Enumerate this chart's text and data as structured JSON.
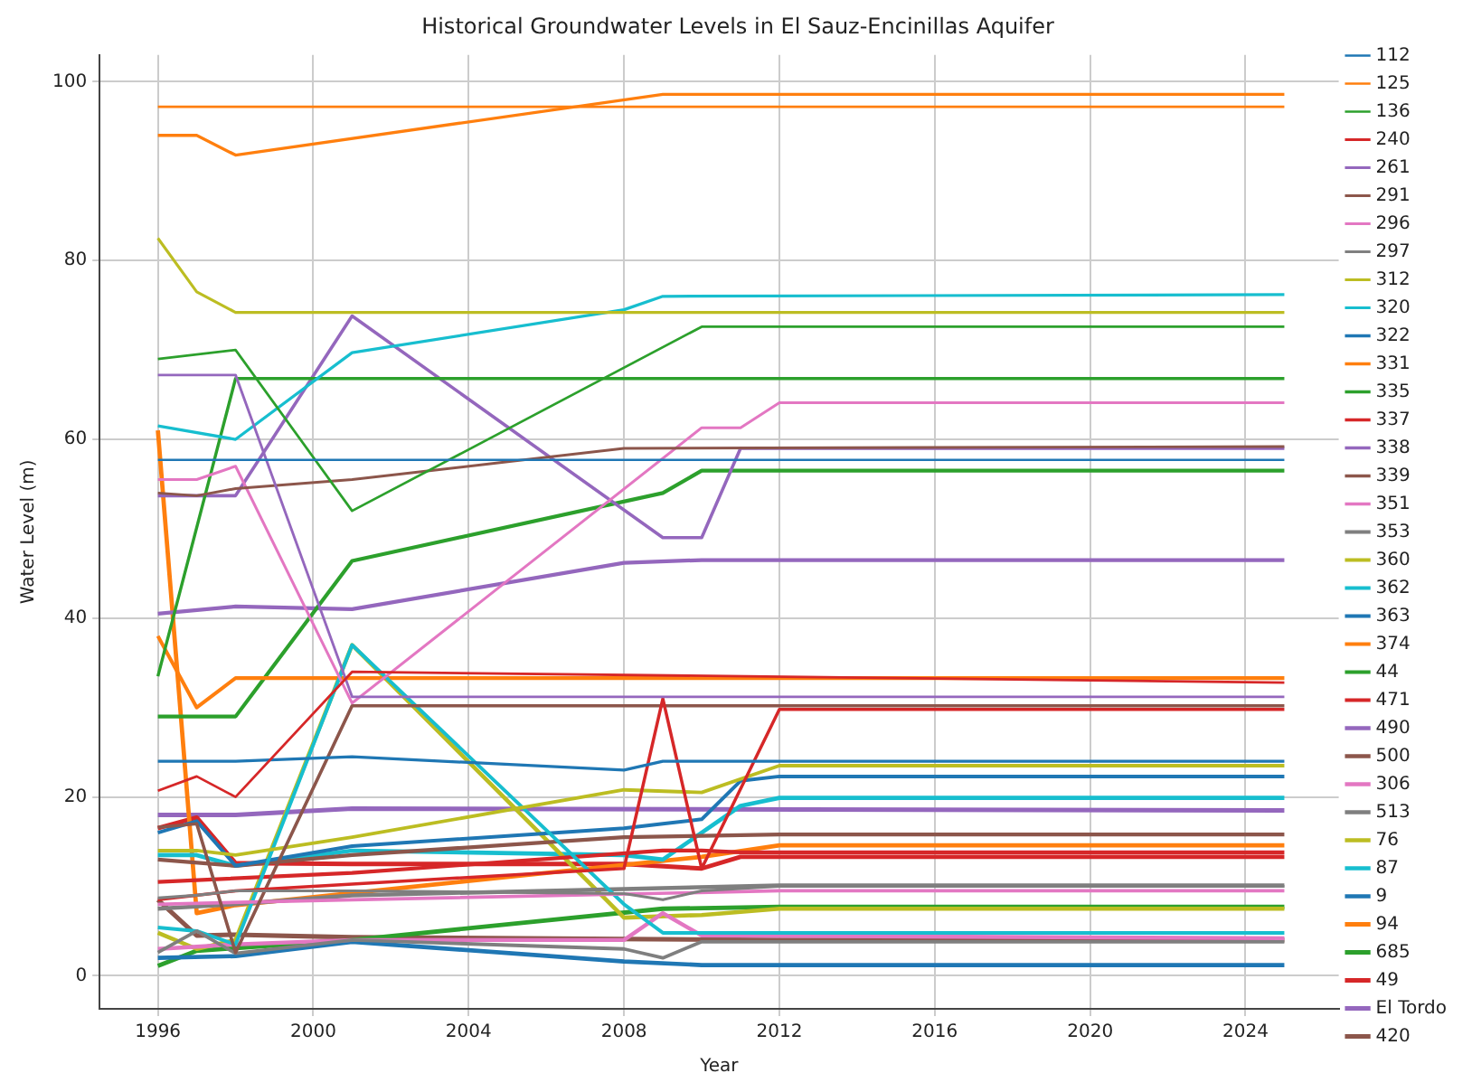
{
  "chart_data": {
    "type": "line",
    "title": "Historical Groundwater Levels in El Sauz-Encinillas Aquifer",
    "xlabel": "Year",
    "ylabel": "Water Level (m)",
    "xlim": [
      1994.5,
      2026.4
    ],
    "ylim": [
      -3.7,
      103
    ],
    "xticks": [
      1996,
      2000,
      2004,
      2008,
      2012,
      2016,
      2020,
      2024
    ],
    "yticks": [
      0,
      20,
      40,
      60,
      80,
      100
    ],
    "grid": true,
    "legend": "right",
    "marker": "none",
    "line_style": "solid",
    "series": [
      {
        "name": "112",
        "color": "#1f77b4",
        "x": [
          1996,
          2025
        ],
        "values": [
          57.7,
          57.7
        ]
      },
      {
        "name": "125",
        "color": "#ff7f0e",
        "x": [
          1996,
          2025
        ],
        "values": [
          97.2,
          97.2
        ]
      },
      {
        "name": "136",
        "color": "#2ca02c",
        "x": [
          1996,
          1998,
          2001,
          2010,
          2025
        ],
        "values": [
          69,
          70,
          52,
          72.6,
          72.6
        ]
      },
      {
        "name": "240",
        "color": "#d62728",
        "x": [
          1996,
          1997,
          1998,
          2001,
          2025
        ],
        "values": [
          20.7,
          22.3,
          20,
          34,
          32.8
        ]
      },
      {
        "name": "261",
        "color": "#9467bd",
        "x": [
          1996,
          1998,
          2001,
          2025
        ],
        "values": [
          67.2,
          67.2,
          31.2,
          31.2
        ]
      },
      {
        "name": "291",
        "color": "#8c564b",
        "x": [
          1996,
          1997,
          1998,
          2001,
          2008,
          2025
        ],
        "values": [
          54,
          53.7,
          54.5,
          55.5,
          59,
          59.2
        ]
      },
      {
        "name": "296",
        "color": "#e377c2",
        "x": [
          1996,
          1997,
          1998,
          2001,
          2010,
          2011,
          2012,
          2025
        ],
        "values": [
          55.5,
          55.5,
          57,
          30.5,
          61.3,
          61.3,
          64.1,
          64.1
        ]
      },
      {
        "name": "297",
        "color": "#7f7f7f",
        "x": [
          1996,
          1997,
          1998,
          2001,
          2008,
          2009,
          2010,
          2012,
          2025
        ],
        "values": [
          8.7,
          9,
          9.5,
          9.5,
          9.2,
          8.5,
          9.5,
          10,
          10
        ]
      },
      {
        "name": "312",
        "color": "#bcbd22",
        "x": [
          1996,
          1997,
          1998,
          2025
        ],
        "values": [
          82.5,
          76.5,
          74.2,
          74.2
        ]
      },
      {
        "name": "320",
        "color": "#17becf",
        "x": [
          1996,
          1998,
          2001,
          2008,
          2009,
          2025
        ],
        "values": [
          61.5,
          60,
          69.7,
          74.5,
          76,
          76.2
        ]
      },
      {
        "name": "322",
        "color": "#1f77b4",
        "x": [
          1996,
          1998,
          2001,
          2008,
          2009,
          2025
        ],
        "values": [
          24,
          24,
          24.5,
          23,
          24,
          24
        ]
      },
      {
        "name": "331",
        "color": "#ff7f0e",
        "x": [
          1996,
          1997,
          1998,
          2009,
          2025
        ],
        "values": [
          94,
          94,
          91.8,
          98.6,
          98.6
        ]
      },
      {
        "name": "335",
        "color": "#2ca02c",
        "x": [
          1996,
          1998,
          2025
        ],
        "values": [
          33.5,
          66.8,
          66.8
        ]
      },
      {
        "name": "337",
        "color": "#d62728",
        "x": [
          1996,
          1998,
          2008,
          2009,
          2010,
          2012,
          2025
        ],
        "values": [
          8.5,
          9.5,
          12,
          31,
          12,
          29.8,
          29.8
        ]
      },
      {
        "name": "338",
        "color": "#9467bd",
        "x": [
          1996,
          1998,
          2001,
          2009,
          2010,
          2011,
          2025
        ],
        "values": [
          53.7,
          53.7,
          73.8,
          49,
          49,
          59,
          59
        ]
      },
      {
        "name": "339",
        "color": "#8c564b",
        "x": [
          1996,
          1997,
          1998,
          2001,
          2025
        ],
        "values": [
          16.6,
          17,
          2.6,
          30.2,
          30.2
        ]
      },
      {
        "name": "351",
        "color": "#e377c2",
        "x": [
          1996,
          2001,
          2012,
          2025
        ],
        "values": [
          8,
          8.5,
          9.5,
          9.5
        ]
      },
      {
        "name": "353",
        "color": "#7f7f7f",
        "x": [
          1996,
          1997,
          1998,
          2001,
          2008,
          2009,
          2010,
          2025
        ],
        "values": [
          2.6,
          5,
          2.5,
          4,
          3,
          2,
          3.8,
          3.8
        ]
      },
      {
        "name": "360",
        "color": "#bcbd22",
        "x": [
          1996,
          1997,
          1998,
          2001,
          2008,
          2010,
          2012,
          2025
        ],
        "values": [
          14,
          14,
          13.5,
          15.5,
          20.8,
          20.5,
          23.5,
          23.5
        ]
      },
      {
        "name": "362",
        "color": "#17becf",
        "x": [
          1996,
          1997,
          1998,
          2001,
          2008,
          2009,
          2025
        ],
        "values": [
          5.4,
          5,
          3.5,
          37,
          8,
          4.8,
          4.8
        ]
      },
      {
        "name": "363",
        "color": "#1f77b4",
        "x": [
          1996,
          1997,
          1998,
          2001,
          2008,
          2009,
          2010,
          2011,
          2012,
          2025
        ],
        "values": [
          16,
          17.3,
          12.3,
          14.5,
          16.5,
          17,
          17.5,
          21.8,
          22.3,
          22.3
        ]
      },
      {
        "name": "374",
        "color": "#ff7f0e",
        "x": [
          1996,
          1997,
          1998,
          2025
        ],
        "values": [
          38,
          30,
          33.3,
          33.3
        ]
      },
      {
        "name": "44",
        "color": "#2ca02c",
        "x": [
          1996,
          1998,
          2001,
          2009,
          2010,
          2025
        ],
        "values": [
          29,
          29,
          46.4,
          54,
          56.5,
          56.5
        ]
      },
      {
        "name": "471",
        "color": "#d62728",
        "x": [
          1996,
          2001,
          2009,
          2010,
          2011,
          2025
        ],
        "values": [
          10.5,
          11.5,
          14,
          14,
          13.8,
          13.8
        ]
      },
      {
        "name": "490",
        "color": "#9467bd",
        "x": [
          1996,
          1998,
          2001,
          2008,
          2010,
          2025
        ],
        "values": [
          40.5,
          41.3,
          41,
          46.2,
          46.5,
          46.5
        ]
      },
      {
        "name": "500",
        "color": "#8c564b",
        "x": [
          1996,
          1998,
          2001,
          2008,
          2012,
          2025
        ],
        "values": [
          13,
          12.3,
          13.5,
          15.5,
          15.8,
          15.8
        ]
      },
      {
        "name": "306",
        "color": "#e377c2",
        "x": [
          1996,
          1998,
          2001,
          2008,
          2009,
          2010,
          2025
        ],
        "values": [
          3,
          3.5,
          4,
          4,
          7,
          4.5,
          4.2
        ]
      },
      {
        "name": "513",
        "color": "#7f7f7f",
        "x": [
          1996,
          1998,
          2001,
          2012,
          2025
        ],
        "values": [
          7.5,
          8,
          9,
          10.1,
          10.1
        ]
      },
      {
        "name": "76",
        "color": "#bcbd22",
        "x": [
          1996,
          1997,
          1998,
          2001,
          2008,
          2010,
          2012,
          2025
        ],
        "values": [
          4.8,
          3,
          4,
          37,
          6.5,
          6.8,
          7.5,
          7.5
        ]
      },
      {
        "name": "87",
        "color": "#17becf",
        "x": [
          1996,
          1997,
          1998,
          2001,
          2008,
          2009,
          2010,
          2011,
          2012,
          2025
        ],
        "values": [
          13.5,
          13.5,
          12.3,
          14,
          13.5,
          13,
          16,
          19,
          19.9,
          19.9
        ]
      },
      {
        "name": "9",
        "color": "#1f77b4",
        "x": [
          1996,
          1998,
          2001,
          2008,
          2010,
          2025
        ],
        "values": [
          2,
          2.2,
          3.8,
          1.6,
          1.2,
          1.2
        ]
      },
      {
        "name": "94",
        "color": "#ff7f0e",
        "x": [
          1996,
          1997,
          1998,
          2010,
          2012,
          2025
        ],
        "values": [
          61,
          7,
          7.9,
          13.3,
          14.6,
          14.6
        ]
      },
      {
        "name": "685",
        "color": "#2ca02c",
        "x": [
          1996,
          1997,
          2001,
          2009,
          2012,
          2025
        ],
        "values": [
          1.1,
          2.8,
          4,
          7.5,
          7.7,
          7.7
        ]
      },
      {
        "name": "49",
        "color": "#d62728",
        "x": [
          1996,
          1997,
          1998,
          2001,
          2008,
          2010,
          2011,
          2025
        ],
        "values": [
          16.5,
          17.7,
          12.6,
          12.5,
          12.5,
          12,
          13.3,
          13.3
        ]
      },
      {
        "name": "El Tordo",
        "color": "#9467bd",
        "x": [
          1996,
          1998,
          2001,
          2025
        ],
        "values": [
          18,
          18,
          18.7,
          18.5
        ]
      },
      {
        "name": "420",
        "color": "#8c564b",
        "x": [
          1996,
          1997,
          1998,
          2001,
          2012,
          2025
        ],
        "values": [
          8.5,
          4.5,
          4.6,
          4.3,
          4,
          4
        ]
      }
    ]
  }
}
